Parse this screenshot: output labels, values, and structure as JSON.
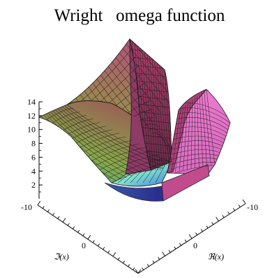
{
  "chart_data": {
    "type": "surface",
    "title": "Wright   omega function",
    "zlim": [
      0,
      14
    ],
    "z_ticks": [
      "2",
      "4",
      "6",
      "8",
      "10",
      "12",
      "14"
    ],
    "xlabel": "ℜ(x)",
    "ylabel": "ℑ(x)",
    "x_ticks": [
      "-10",
      "0"
    ],
    "y_ticks": [
      "-10",
      "0"
    ],
    "xlim": [
      -10,
      10
    ],
    "ylim": [
      -10,
      10
    ],
    "grid": true,
    "colors": {
      "surface_left": "#7a9a4a",
      "surface_fold": "#8a3c5c",
      "surface_right": "#e27cc6",
      "bottom": "#2b2f8c",
      "mesh": "#1a1a1a"
    }
  }
}
